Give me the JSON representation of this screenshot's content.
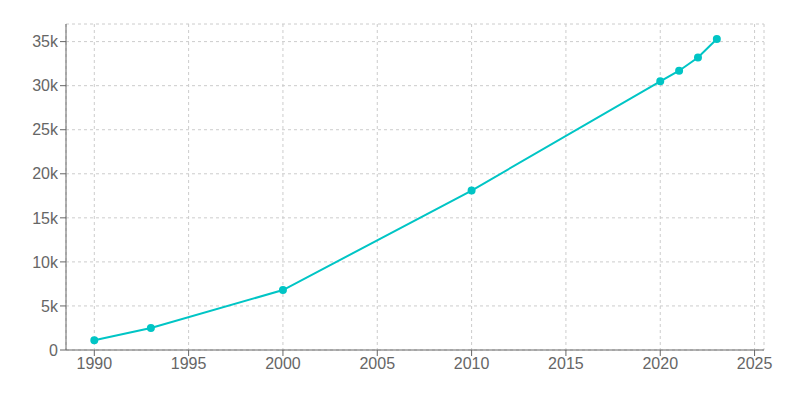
{
  "chart_data": {
    "type": "line",
    "x": [
      1990,
      1993,
      2000,
      2010,
      2020,
      2021,
      2022,
      2023
    ],
    "values": [
      1100,
      2500,
      6800,
      18100,
      30500,
      31700,
      33200,
      35300
    ],
    "color": "#00C5C5",
    "marker": "circle",
    "xlim": [
      1988.5,
      2025.5
    ],
    "xticks": [
      1990,
      1995,
      2000,
      2005,
      2010,
      2015,
      2020,
      2025
    ],
    "ylim": [
      0,
      37000
    ],
    "yticks": [
      0,
      {
        "value": 5000,
        "label": "5k"
      },
      {
        "value": 10000,
        "label": "10k"
      },
      {
        "value": 15000,
        "label": "15k"
      },
      {
        "value": 20000,
        "label": "20k"
      },
      {
        "value": 25000,
        "label": "25k"
      },
      {
        "value": 30000,
        "label": "30k"
      },
      {
        "value": 35000,
        "label": "35k"
      }
    ],
    "grid": true
  }
}
